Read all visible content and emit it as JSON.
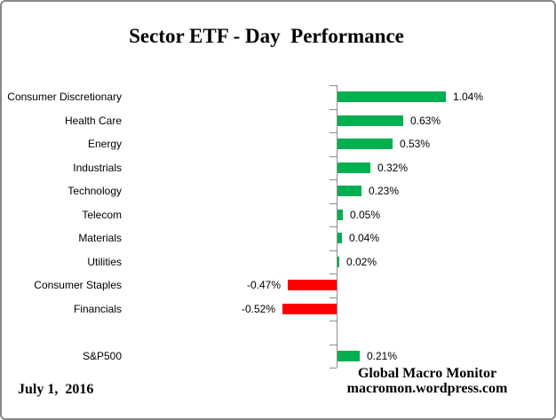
{
  "chart_data": {
    "type": "bar",
    "orientation": "horizontal",
    "title": "Sector ETF - Day  Performance",
    "xlabel": "",
    "ylabel": "",
    "unit": "percent",
    "positive_color": "#00B050",
    "negative_color": "#FF0000",
    "axis_color": "#8C8C8C",
    "value_axis_labels_visible": false,
    "category_tick_marks": true,
    "categories": [
      "Consumer Discretionary",
      "Health Care",
      "Energy",
      "Industrials",
      "Technology",
      "Telecom",
      "Materials",
      "Utilities",
      "Consumer Staples",
      "Financials",
      "S&P500"
    ],
    "values": [
      1.04,
      0.63,
      0.53,
      0.32,
      0.23,
      0.05,
      0.04,
      0.02,
      -0.47,
      -0.52,
      0.21
    ],
    "gap_before_last_row": true,
    "rows": [
      {
        "category": "Consumer Discretionary",
        "value": 1.04,
        "display": "1.04%",
        "row": 0
      },
      {
        "category": "Health Care",
        "value": 0.63,
        "display": "0.63%",
        "row": 1
      },
      {
        "category": "Energy",
        "value": 0.53,
        "display": "0.53%",
        "row": 2
      },
      {
        "category": "Industrials",
        "value": 0.32,
        "display": "0.32%",
        "row": 3
      },
      {
        "category": "Technology",
        "value": 0.23,
        "display": "0.23%",
        "row": 4
      },
      {
        "category": "Telecom",
        "value": 0.05,
        "display": "0.05%",
        "row": 5
      },
      {
        "category": "Materials",
        "value": 0.04,
        "display": "0.04%",
        "row": 6
      },
      {
        "category": "Utilities",
        "value": 0.02,
        "display": "0.02%",
        "row": 7
      },
      {
        "category": "Consumer Staples",
        "value": -0.47,
        "display": "-0.47%",
        "row": 8
      },
      {
        "category": "Financials",
        "value": -0.52,
        "display": "-0.52%",
        "row": 9
      },
      {
        "category": "S&P500",
        "value": 0.21,
        "display": "0.21%",
        "row": 11
      }
    ]
  },
  "footer": {
    "date": "July 1,  2016",
    "credit_line1": "Global Macro Monitor",
    "credit_line2": "macromon.wordpress.com"
  }
}
